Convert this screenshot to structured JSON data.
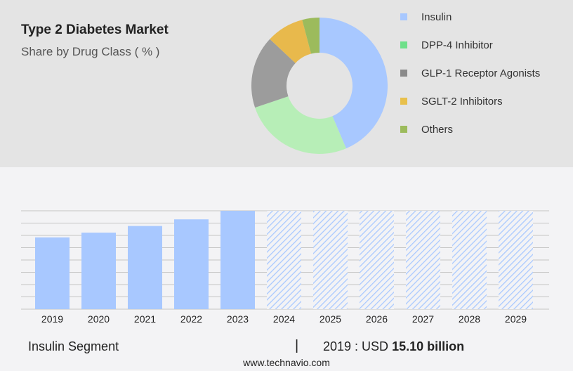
{
  "chart_data": [
    {
      "type": "pie",
      "title": "Type 2 Diabetes Market",
      "subtitle": "Share by Drug Class ( % )",
      "donut": true,
      "slices": [
        {
          "name": "Insulin",
          "value": 43.6,
          "color": "#a8c8ff"
        },
        {
          "name": "DPP-4 Inhibitor",
          "value": 26.2,
          "color": "#b7eeb7"
        },
        {
          "name": "GLP-1 Receptor Agonists",
          "value": 17.2,
          "color": "#9c9c9c"
        },
        {
          "name": "SGLT-2 Inhibitors",
          "value": 8.9,
          "color": "#e8b94c"
        },
        {
          "name": "Others",
          "value": 4.1,
          "color": "#9cbb5c"
        }
      ],
      "legend_colors": [
        "#a8c8ff",
        "#6ee08a",
        "#8a8a8a",
        "#e8c04c",
        "#9cbb5c"
      ],
      "legend": "right"
    },
    {
      "type": "bar",
      "categories": [
        "2019",
        "2020",
        "2021",
        "2022",
        "2023",
        "2024",
        "2025",
        "2026",
        "2027",
        "2028",
        "2029"
      ],
      "values": [
        15.1,
        16.1,
        17.5,
        18.9,
        20.7,
        null,
        null,
        null,
        null,
        null,
        null
      ],
      "forecast_from": "2024",
      "unit": "USD billion",
      "grid": true,
      "color": "#a8c8ff"
    }
  ],
  "footer": {
    "segment": "Insulin Segment",
    "separator": "|",
    "year_label": "2019 : USD ",
    "value": "15.10 billion",
    "site": "www.technavio.com"
  }
}
